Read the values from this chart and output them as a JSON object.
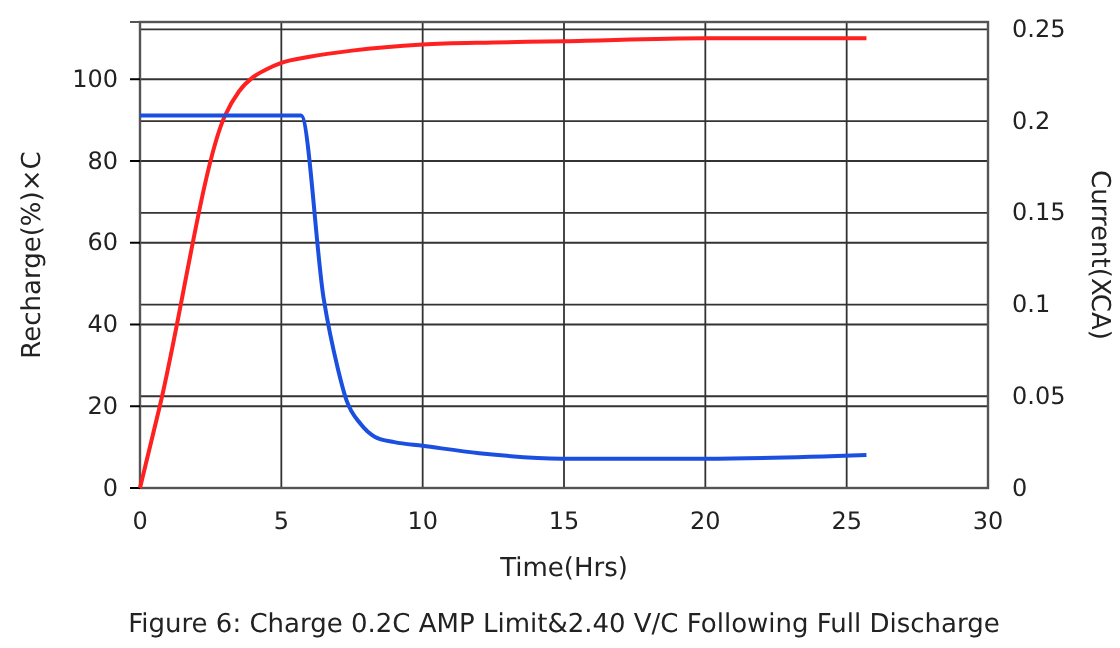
{
  "chart_data": {
    "type": "line",
    "title": "Figure 6: Charge 0.2C AMP Limit&2.40 V/C Following Full Discharge",
    "xlabel": "Time(Hrs)",
    "ylabel": "Recharge(%)×C",
    "y2label": "Current(XCA)",
    "xlim": [
      0,
      30
    ],
    "xticks": [
      0,
      5,
      10,
      15,
      20,
      25,
      30
    ],
    "ylim": [
      0,
      114
    ],
    "yticks": [
      0,
      20,
      40,
      60,
      80,
      100
    ],
    "y2lim": [
      0,
      0.254
    ],
    "y2ticks": [
      0,
      0.05,
      0.1,
      0.15,
      0.2,
      0.25
    ],
    "grid": true,
    "marker": "none",
    "line_style": "solid",
    "series": [
      {
        "color": "#ff2020",
        "x": [
          0,
          0.7,
          3,
          3.5,
          4,
          4.5,
          5,
          6,
          7.5,
          10,
          12.5,
          15,
          20,
          25.7
        ],
        "values": [
          0,
          20,
          91,
          97,
          100.5,
          102.5,
          104,
          105.5,
          107,
          108.5,
          109,
          109.3,
          110,
          110
        ]
      },
      {
        "color": "#1a4fe0",
        "axis": "y2",
        "x": [
          0,
          5.7,
          6.5,
          7,
          7.3,
          7.8,
          8.3,
          9,
          10,
          12,
          14.9,
          20,
          25.7
        ],
        "values": [
          0.203,
          0.203,
          0.103,
          0.065,
          0.048,
          0.035,
          0.028,
          0.025,
          0.023,
          0.019,
          0.016,
          0.016,
          0.018
        ]
      }
    ]
  }
}
